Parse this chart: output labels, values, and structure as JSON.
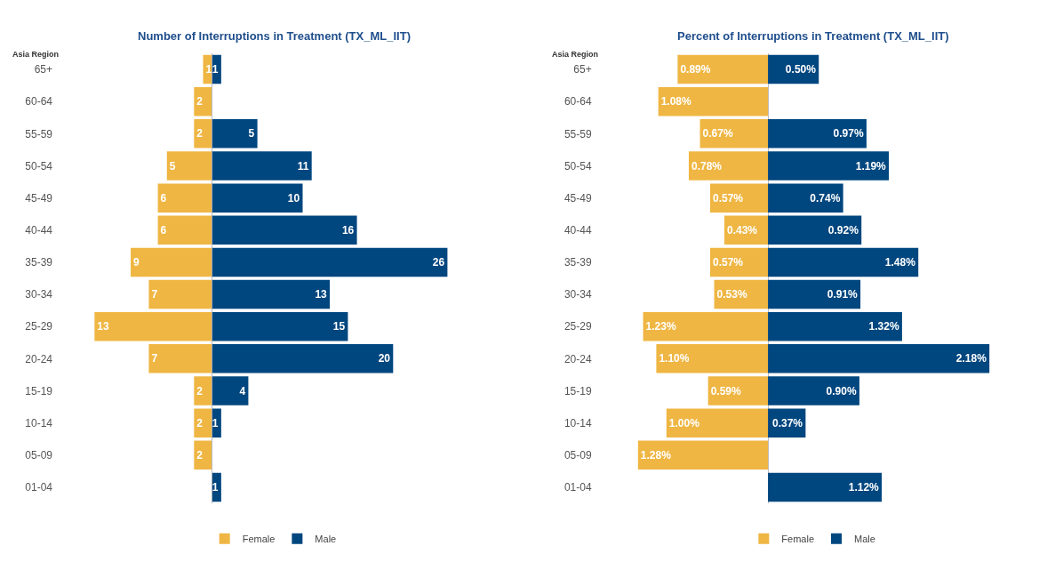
{
  "chart_data": [
    {
      "type": "bar",
      "orientation": "horizontal",
      "title": "Number of Interruptions in Treatment (TX_ML_IIT)",
      "ylabel": "Asia Region",
      "legend": "bottom",
      "tick_labels": "y",
      "categories": [
        "65+",
        "60-64",
        "55-59",
        "50-54",
        "45-49",
        "40-44",
        "35-39",
        "30-34",
        "25-29",
        "20-24",
        "15-19",
        "10-14",
        "05-09",
        "01-04"
      ],
      "series": [
        {
          "name": "Female",
          "color": "#efb643",
          "values": [
            1,
            2,
            2,
            5,
            6,
            6,
            9,
            7,
            13,
            7,
            2,
            2,
            2,
            null
          ],
          "value_labels": [
            "1",
            "2",
            "2",
            "5",
            "6",
            "6",
            "9",
            "7",
            "13",
            "7",
            "2",
            "2",
            "2",
            null
          ]
        }
      ]
    },
    {
      "type": "bar",
      "orientation": "horizontal",
      "legend": "bottom",
      "tick_labels": false,
      "categories": [
        "65+",
        "60-64",
        "55-59",
        "50-54",
        "45-49",
        "40-44",
        "35-39",
        "30-34",
        "25-29",
        "20-24",
        "15-19",
        "10-14",
        "05-09",
        "01-04"
      ],
      "series": [
        {
          "name": "Male",
          "color": "#00467f",
          "values": [
            1,
            null,
            5,
            11,
            10,
            16,
            26,
            13,
            15,
            20,
            4,
            1,
            null,
            1
          ],
          "value_labels": [
            "1",
            null,
            "5",
            "11",
            "10",
            "16",
            "26",
            "13",
            "15",
            "20",
            "4",
            "1",
            null,
            "1"
          ]
        }
      ]
    },
    {
      "type": "bar",
      "orientation": "horizontal",
      "title": "Percent of Interruptions in Treatment (TX_ML_IIT)",
      "ylabel": "Asia Region",
      "legend": "bottom",
      "tick_labels": "y",
      "categories": [
        "65+",
        "60-64",
        "55-59",
        "50-54",
        "45-49",
        "40-44",
        "35-39",
        "30-34",
        "25-29",
        "20-24",
        "15-19",
        "10-14",
        "05-09",
        "01-04"
      ],
      "series": [
        {
          "name": "Female",
          "color": "#efb643",
          "values": [
            0.89,
            1.08,
            0.67,
            0.78,
            0.57,
            0.43,
            0.57,
            0.53,
            1.23,
            1.1,
            0.59,
            1.0,
            1.28,
            null
          ],
          "value_labels": [
            "0.89%",
            "1.08%",
            "0.67%",
            "0.78%",
            "0.57%",
            "0.43%",
            "0.57%",
            "0.53%",
            "1.23%",
            "1.10%",
            "0.59%",
            "1.00%",
            "1.28%",
            null
          ]
        }
      ]
    },
    {
      "type": "bar",
      "orientation": "horizontal",
      "legend": "bottom",
      "tick_labels": false,
      "categories": [
        "65+",
        "60-64",
        "55-59",
        "50-54",
        "45-49",
        "40-44",
        "35-39",
        "30-34",
        "25-29",
        "20-24",
        "15-19",
        "10-14",
        "05-09",
        "01-04"
      ],
      "series": [
        {
          "name": "Male",
          "color": "#00467f",
          "values": [
            0.5,
            null,
            0.97,
            1.19,
            0.74,
            0.92,
            1.48,
            0.91,
            1.32,
            2.18,
            0.9,
            0.37,
            null,
            1.12
          ],
          "value_labels": [
            "0.50%",
            null,
            "0.97%",
            "1.19%",
            "0.74%",
            "0.92%",
            "1.48%",
            "0.91%",
            "1.32%",
            "2.18%",
            "0.90%",
            "0.37%",
            null,
            "1.12%"
          ]
        }
      ]
    }
  ]
}
